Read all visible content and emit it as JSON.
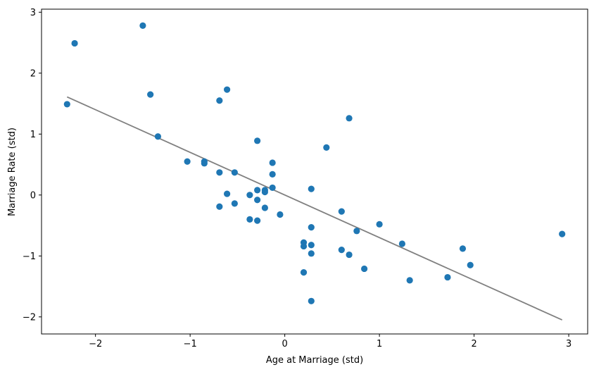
{
  "chart_data": {
    "type": "scatter",
    "title": "",
    "xlabel": "Age at Marriage (std)",
    "ylabel": "Marriage Rate (std)",
    "xlim": [
      -2.57,
      3.2
    ],
    "ylim": [
      -2.28,
      3.05
    ],
    "grid": false,
    "legend": "none",
    "x_ticks": [
      {
        "value": -2,
        "label": "−2"
      },
      {
        "value": -1,
        "label": "−1"
      },
      {
        "value": 0,
        "label": "0"
      },
      {
        "value": 1,
        "label": "1"
      },
      {
        "value": 2,
        "label": "2"
      },
      {
        "value": 3,
        "label": "3"
      }
    ],
    "y_ticks": [
      {
        "value": -2,
        "label": "−2"
      },
      {
        "value": -1,
        "label": "−1"
      },
      {
        "value": 0,
        "label": "0"
      },
      {
        "value": 1,
        "label": "1"
      },
      {
        "value": 2,
        "label": "2"
      },
      {
        "value": 3,
        "label": "3"
      }
    ],
    "series": [
      {
        "type": "scatter",
        "color": "#1f77b4",
        "points": [
          {
            "x": -2.3,
            "y": 1.49
          },
          {
            "x": -2.22,
            "y": 2.49
          },
          {
            "x": -1.5,
            "y": 2.78
          },
          {
            "x": -1.42,
            "y": 1.65
          },
          {
            "x": -1.34,
            "y": 0.96
          },
          {
            "x": -1.03,
            "y": 0.55
          },
          {
            "x": -0.85,
            "y": 0.55
          },
          {
            "x": -0.85,
            "y": 0.52
          },
          {
            "x": -0.69,
            "y": 1.55
          },
          {
            "x": -0.69,
            "y": 0.37
          },
          {
            "x": -0.69,
            "y": -0.19
          },
          {
            "x": -0.61,
            "y": 1.73
          },
          {
            "x": -0.61,
            "y": 0.02
          },
          {
            "x": -0.53,
            "y": 0.37
          },
          {
            "x": -0.53,
            "y": -0.14
          },
          {
            "x": -0.37,
            "y": 0.0
          },
          {
            "x": -0.37,
            "y": -0.4
          },
          {
            "x": -0.29,
            "y": 0.89
          },
          {
            "x": -0.29,
            "y": 0.08
          },
          {
            "x": -0.29,
            "y": -0.08
          },
          {
            "x": -0.29,
            "y": -0.42
          },
          {
            "x": -0.21,
            "y": 0.08
          },
          {
            "x": -0.21,
            "y": 0.05
          },
          {
            "x": -0.21,
            "y": -0.21
          },
          {
            "x": -0.13,
            "y": 0.53
          },
          {
            "x": -0.13,
            "y": 0.34
          },
          {
            "x": -0.13,
            "y": 0.12
          },
          {
            "x": -0.05,
            "y": -0.32
          },
          {
            "x": 0.2,
            "y": -0.78
          },
          {
            "x": 0.2,
            "y": -0.84
          },
          {
            "x": 0.2,
            "y": -1.27
          },
          {
            "x": 0.28,
            "y": 0.1
          },
          {
            "x": 0.28,
            "y": -0.53
          },
          {
            "x": 0.28,
            "y": -0.82
          },
          {
            "x": 0.28,
            "y": -0.96
          },
          {
            "x": 0.28,
            "y": -1.74
          },
          {
            "x": 0.44,
            "y": 0.78
          },
          {
            "x": 0.6,
            "y": -0.27
          },
          {
            "x": 0.6,
            "y": -0.9
          },
          {
            "x": 0.68,
            "y": 1.26
          },
          {
            "x": 0.68,
            "y": -0.98
          },
          {
            "x": 0.76,
            "y": -0.59
          },
          {
            "x": 0.84,
            "y": -1.21
          },
          {
            "x": 1.0,
            "y": -0.48
          },
          {
            "x": 1.24,
            "y": -0.8
          },
          {
            "x": 1.32,
            "y": -1.4
          },
          {
            "x": 1.72,
            "y": -1.35
          },
          {
            "x": 1.88,
            "y": -0.88
          },
          {
            "x": 1.96,
            "y": -1.15
          },
          {
            "x": 2.93,
            "y": -0.64
          }
        ]
      },
      {
        "type": "line",
        "color": "#808080",
        "points": [
          {
            "x": -2.3,
            "y": 1.61
          },
          {
            "x": 2.93,
            "y": -2.05
          }
        ]
      }
    ]
  }
}
